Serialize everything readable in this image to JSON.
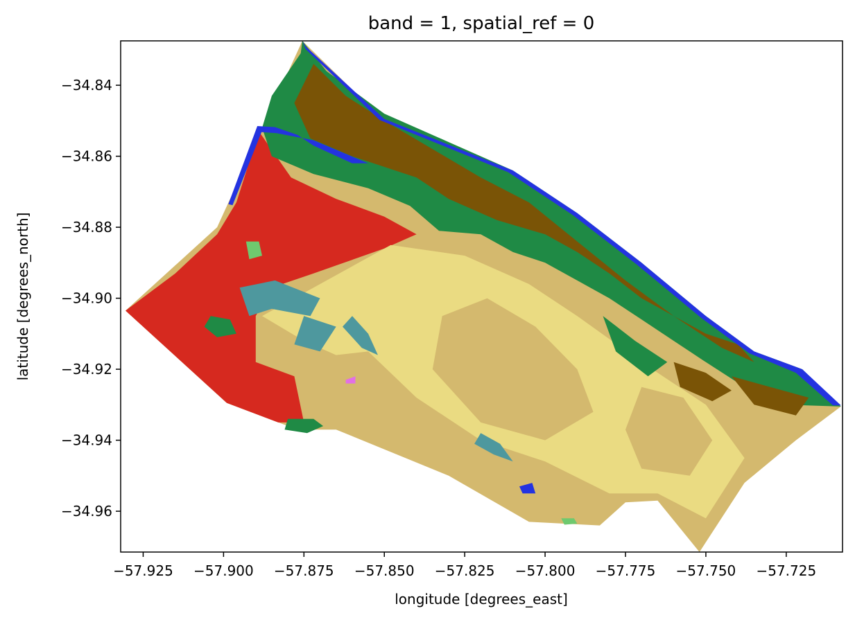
{
  "chart_data": {
    "type": "heatmap",
    "title": "band = 1, spatial_ref = 0",
    "xlabel": "longitude [degrees_east]",
    "ylabel": "latitude [degrees_north]",
    "xlim": [
      -57.932,
      -57.7075
    ],
    "ylim": [
      -34.9715,
      -34.8275
    ],
    "xticks": [
      -57.925,
      -57.9,
      -57.875,
      -57.85,
      -57.825,
      -57.8,
      -57.775,
      -57.75,
      -57.725
    ],
    "xtick_labels": [
      "−57.925",
      "−57.900",
      "−57.875",
      "−57.850",
      "−57.825",
      "−57.800",
      "−57.775",
      "−57.750",
      "−57.725"
    ],
    "yticks": [
      -34.84,
      -34.86,
      -34.88,
      -34.9,
      -34.92,
      -34.94,
      -34.96
    ],
    "ytick_labels": [
      "−34.84",
      "−34.86",
      "−34.88",
      "−34.90",
      "−34.92",
      "−34.94",
      "−34.96"
    ],
    "grid": false,
    "colors": {
      "bare_tan": "#d4b96e",
      "crop_yellow": "#eadb82",
      "built_red": "#d6291f",
      "trees_green": "#1f8a45",
      "shrub_brown": "#7a5406",
      "water_blue": "#2433e0",
      "flooded_teal": "#4e989e",
      "grass_lightgreen": "#6fc96f",
      "snow_violet": "#e26fe6"
    },
    "regions": [
      {
        "class": "bare_tan",
        "poly": [
          [
            -57.9305,
            -34.9035
          ],
          [
            -57.902,
            -34.88
          ],
          [
            -57.8755,
            -34.8275
          ],
          [
            -57.85,
            -34.85
          ],
          [
            -57.82,
            -34.866
          ],
          [
            -57.79,
            -34.88
          ],
          [
            -57.76,
            -34.9
          ],
          [
            -57.735,
            -34.92
          ],
          [
            -57.708,
            -34.9305
          ],
          [
            -57.722,
            -34.94
          ],
          [
            -57.738,
            -34.952
          ],
          [
            -57.752,
            -34.9715
          ],
          [
            -57.765,
            -34.957
          ],
          [
            -57.775,
            -34.9575
          ],
          [
            -57.783,
            -34.964
          ],
          [
            -57.805,
            -34.963
          ],
          [
            -57.83,
            -34.95
          ],
          [
            -57.865,
            -34.937
          ],
          [
            -57.877,
            -34.937
          ],
          [
            -57.899,
            -34.9295
          ]
        ]
      },
      {
        "class": "built_red",
        "poly": [
          [
            -57.9305,
            -34.9035
          ],
          [
            -57.915,
            -34.893
          ],
          [
            -57.902,
            -34.882
          ],
          [
            -57.896,
            -34.873
          ],
          [
            -57.889,
            -34.853
          ],
          [
            -57.879,
            -34.866
          ],
          [
            -57.865,
            -34.872
          ],
          [
            -57.85,
            -34.877
          ],
          [
            -57.84,
            -34.882
          ],
          [
            -57.85,
            -34.886
          ],
          [
            -57.872,
            -34.893
          ],
          [
            -57.885,
            -34.897
          ],
          [
            -57.89,
            -34.905
          ],
          [
            -57.89,
            -34.918
          ],
          [
            -57.878,
            -34.922
          ],
          [
            -57.875,
            -34.935
          ],
          [
            -57.883,
            -34.935
          ],
          [
            -57.899,
            -34.9295
          ]
        ]
      },
      {
        "class": "crop_yellow",
        "poly": [
          [
            -57.888,
            -34.905
          ],
          [
            -57.87,
            -34.896
          ],
          [
            -57.848,
            -34.885
          ],
          [
            -57.825,
            -34.888
          ],
          [
            -57.805,
            -34.896
          ],
          [
            -57.79,
            -34.905
          ],
          [
            -57.77,
            -34.918
          ],
          [
            -57.75,
            -34.93
          ],
          [
            -57.738,
            -34.945
          ],
          [
            -57.75,
            -34.962
          ],
          [
            -57.765,
            -34.955
          ],
          [
            -57.78,
            -34.955
          ],
          [
            -57.8,
            -34.946
          ],
          [
            -57.82,
            -34.94
          ],
          [
            -57.84,
            -34.928
          ],
          [
            -57.855,
            -34.915
          ],
          [
            -57.865,
            -34.916
          ],
          [
            -57.875,
            -34.912
          ]
        ]
      },
      {
        "class": "bare_tan",
        "poly": [
          [
            -57.832,
            -34.905
          ],
          [
            -57.818,
            -34.9
          ],
          [
            -57.803,
            -34.908
          ],
          [
            -57.79,
            -34.92
          ],
          [
            -57.785,
            -34.932
          ],
          [
            -57.8,
            -34.94
          ],
          [
            -57.82,
            -34.935
          ],
          [
            -57.835,
            -34.92
          ]
        ]
      },
      {
        "class": "bare_tan",
        "poly": [
          [
            -57.77,
            -34.925
          ],
          [
            -57.757,
            -34.928
          ],
          [
            -57.748,
            -34.94
          ],
          [
            -57.755,
            -34.95
          ],
          [
            -57.77,
            -34.948
          ],
          [
            -57.775,
            -34.937
          ]
        ]
      },
      {
        "class": "trees_green",
        "poly": [
          [
            -57.8755,
            -34.8275
          ],
          [
            -57.876,
            -34.831
          ],
          [
            -57.885,
            -34.843
          ],
          [
            -57.888,
            -34.852
          ],
          [
            -57.885,
            -34.86
          ],
          [
            -57.872,
            -34.865
          ],
          [
            -57.855,
            -34.869
          ],
          [
            -57.842,
            -34.874
          ],
          [
            -57.833,
            -34.881
          ],
          [
            -57.82,
            -34.882
          ],
          [
            -57.81,
            -34.887
          ],
          [
            -57.8,
            -34.89
          ],
          [
            -57.79,
            -34.895
          ],
          [
            -57.78,
            -34.9
          ],
          [
            -57.77,
            -34.906
          ],
          [
            -57.76,
            -34.912
          ],
          [
            -57.75,
            -34.918
          ],
          [
            -57.738,
            -34.925
          ],
          [
            -57.725,
            -34.93
          ],
          [
            -57.708,
            -34.9305
          ],
          [
            -57.72,
            -34.92
          ],
          [
            -57.735,
            -34.915
          ],
          [
            -57.75,
            -34.905
          ],
          [
            -57.77,
            -34.89
          ],
          [
            -57.79,
            -34.876
          ],
          [
            -57.81,
            -34.864
          ],
          [
            -57.83,
            -34.856
          ],
          [
            -57.85,
            -34.848
          ],
          [
            -57.868,
            -34.836
          ]
        ]
      },
      {
        "class": "shrub_brown",
        "poly": [
          [
            -57.872,
            -34.834
          ],
          [
            -57.878,
            -34.845
          ],
          [
            -57.873,
            -34.855
          ],
          [
            -57.86,
            -34.86
          ],
          [
            -57.84,
            -34.866
          ],
          [
            -57.83,
            -34.872
          ],
          [
            -57.815,
            -34.878
          ],
          [
            -57.8,
            -34.882
          ],
          [
            -57.79,
            -34.887
          ],
          [
            -57.78,
            -34.893
          ],
          [
            -57.77,
            -34.9
          ],
          [
            -57.76,
            -34.905
          ],
          [
            -57.75,
            -34.91
          ],
          [
            -57.74,
            -34.913
          ],
          [
            -57.735,
            -34.918
          ],
          [
            -57.745,
            -34.914
          ],
          [
            -57.76,
            -34.905
          ],
          [
            -57.775,
            -34.895
          ],
          [
            -57.79,
            -34.884
          ],
          [
            -57.805,
            -34.873
          ],
          [
            -57.82,
            -34.866
          ],
          [
            -57.835,
            -34.858
          ],
          [
            -57.85,
            -34.85
          ],
          [
            -57.862,
            -34.843
          ]
        ]
      },
      {
        "class": "shrub_brown",
        "poly": [
          [
            -57.742,
            -34.922
          ],
          [
            -57.73,
            -34.925
          ],
          [
            -57.718,
            -34.928
          ],
          [
            -57.722,
            -34.933
          ],
          [
            -57.735,
            -34.93
          ]
        ]
      },
      {
        "class": "shrub_brown",
        "poly": [
          [
            -57.76,
            -34.918
          ],
          [
            -57.75,
            -34.921
          ],
          [
            -57.742,
            -34.926
          ],
          [
            -57.748,
            -34.929
          ],
          [
            -57.758,
            -34.925
          ]
        ]
      },
      {
        "class": "trees_green",
        "poly": [
          [
            -57.782,
            -34.905
          ],
          [
            -57.772,
            -34.912
          ],
          [
            -57.762,
            -34.918
          ],
          [
            -57.768,
            -34.922
          ],
          [
            -57.778,
            -34.915
          ]
        ]
      },
      {
        "class": "water_blue",
        "poly": [
          [
            -57.8985,
            -34.8735
          ],
          [
            -57.8895,
            -34.8515
          ],
          [
            -57.884,
            -34.8518
          ],
          [
            -57.877,
            -34.854
          ],
          [
            -57.872,
            -34.857
          ],
          [
            -57.86,
            -34.862
          ],
          [
            -57.855,
            -34.862
          ],
          [
            -57.872,
            -34.8555
          ],
          [
            -57.8835,
            -34.8535
          ],
          [
            -57.8882,
            -34.8532
          ],
          [
            -57.8972,
            -34.8738
          ]
        ]
      },
      {
        "class": "water_blue",
        "poly": [
          [
            -57.8755,
            -34.8275
          ],
          [
            -57.8745,
            -34.829
          ],
          [
            -57.85,
            -34.8495
          ],
          [
            -57.81,
            -34.864
          ],
          [
            -57.79,
            -34.876
          ],
          [
            -57.77,
            -34.89
          ],
          [
            -57.75,
            -34.905
          ],
          [
            -57.735,
            -34.915
          ],
          [
            -57.72,
            -34.92
          ],
          [
            -57.708,
            -34.9302
          ],
          [
            -57.7105,
            -34.9302
          ],
          [
            -57.722,
            -34.921
          ],
          [
            -57.7365,
            -34.9155
          ],
          [
            -57.7515,
            -34.9055
          ],
          [
            -57.7715,
            -34.8905
          ],
          [
            -57.7915,
            -34.8765
          ],
          [
            -57.8115,
            -34.8645
          ],
          [
            -57.8515,
            -34.8498
          ],
          [
            -57.8745,
            -34.8298
          ]
        ]
      },
      {
        "class": "flooded_teal",
        "poly": [
          [
            -57.895,
            -34.897
          ],
          [
            -57.884,
            -34.895
          ],
          [
            -57.87,
            -34.9
          ],
          [
            -57.873,
            -34.905
          ],
          [
            -57.885,
            -34.903
          ],
          [
            -57.892,
            -34.905
          ]
        ]
      },
      {
        "class": "flooded_teal",
        "poly": [
          [
            -57.875,
            -34.905
          ],
          [
            -57.865,
            -34.908
          ],
          [
            -57.87,
            -34.915
          ],
          [
            -57.878,
            -34.913
          ]
        ]
      },
      {
        "class": "flooded_teal",
        "poly": [
          [
            -57.86,
            -34.905
          ],
          [
            -57.855,
            -34.91
          ],
          [
            -57.852,
            -34.916
          ],
          [
            -57.857,
            -34.914
          ],
          [
            -57.863,
            -34.908
          ]
        ]
      },
      {
        "class": "flooded_teal",
        "poly": [
          [
            -57.82,
            -34.938
          ],
          [
            -57.814,
            -34.941
          ],
          [
            -57.81,
            -34.946
          ],
          [
            -57.816,
            -34.944
          ],
          [
            -57.822,
            -34.941
          ]
        ]
      },
      {
        "class": "trees_green",
        "poly": [
          [
            -57.904,
            -34.905
          ],
          [
            -57.898,
            -34.906
          ],
          [
            -57.896,
            -34.91
          ],
          [
            -57.902,
            -34.911
          ],
          [
            -57.906,
            -34.908
          ]
        ]
      },
      {
        "class": "trees_green",
        "poly": [
          [
            -57.88,
            -34.934
          ],
          [
            -57.872,
            -34.934
          ],
          [
            -57.869,
            -34.936
          ],
          [
            -57.874,
            -34.938
          ],
          [
            -57.881,
            -34.937
          ]
        ]
      },
      {
        "class": "grass_lightgreen",
        "poly": [
          [
            -57.893,
            -34.884
          ],
          [
            -57.889,
            -34.884
          ],
          [
            -57.888,
            -34.888
          ],
          [
            -57.892,
            -34.889
          ]
        ]
      },
      {
        "class": "grass_lightgreen",
        "poly": [
          [
            -57.795,
            -34.962
          ],
          [
            -57.791,
            -34.962
          ],
          [
            -57.79,
            -34.9635
          ],
          [
            -57.794,
            -34.9638
          ]
        ]
      },
      {
        "class": "water_blue",
        "poly": [
          [
            -57.808,
            -34.953
          ],
          [
            -57.804,
            -34.952
          ],
          [
            -57.803,
            -34.955
          ],
          [
            -57.807,
            -34.955
          ]
        ]
      },
      {
        "class": "snow_violet",
        "poly": [
          [
            -57.862,
            -34.923
          ],
          [
            -57.859,
            -34.922
          ],
          [
            -57.859,
            -34.924
          ],
          [
            -57.862,
            -34.924
          ]
        ]
      }
    ]
  }
}
